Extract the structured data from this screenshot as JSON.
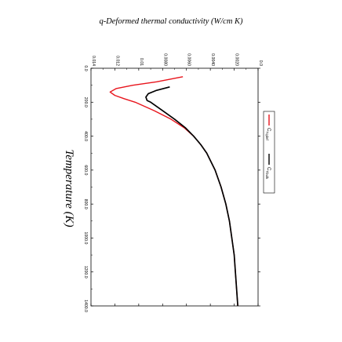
{
  "chart_data": {
    "type": "line",
    "title": "q-Deformed thermal conductivity (W/cm K)",
    "xlabel": "Temperature (K)",
    "ylabel": "",
    "xlim": [
      0,
      1400
    ],
    "ylim": [
      0,
      0.014
    ],
    "x_ticks": [
      "0.0",
      "200.0",
      "400.0",
      "600.0",
      "800.0",
      "1000.0",
      "1200.0",
      "1400.0"
    ],
    "y_ticks": [
      "0.0",
      "0.0020",
      "0.0040",
      "0.0060",
      "0.0080",
      "0.01",
      "0.012",
      "0.014"
    ],
    "legend_position": "right",
    "series": [
      {
        "name_main": "C",
        "name_sub": "Tqdef",
        "color": "#e8141c",
        "x": [
          50,
          80,
          100,
          120,
          140,
          160,
          180,
          200,
          250,
          300,
          350,
          400,
          450,
          500,
          600,
          700,
          800,
          900,
          1000,
          1100,
          1200,
          1300,
          1400
        ],
        "y": [
          0.0063,
          0.0085,
          0.0105,
          0.0119,
          0.0124,
          0.012,
          0.0112,
          0.0103,
          0.0087,
          0.0073,
          0.0062,
          0.0054,
          0.0048,
          0.0043,
          0.0036,
          0.0031,
          0.0027,
          0.0024,
          0.0022,
          0.002,
          0.0019,
          0.0018,
          0.0017
        ]
      },
      {
        "name_main": "C",
        "name_sub": "Tbulk",
        "color": "#000000",
        "x": [
          110,
          130,
          150,
          170,
          190,
          200,
          250,
          300,
          350,
          400,
          450,
          500,
          600,
          700,
          800,
          900,
          1000,
          1100,
          1200,
          1300,
          1400
        ],
        "y": [
          0.0074,
          0.0085,
          0.0092,
          0.0094,
          0.0093,
          0.009,
          0.008,
          0.007,
          0.0061,
          0.0054,
          0.0048,
          0.0043,
          0.0036,
          0.0031,
          0.0027,
          0.0024,
          0.0022,
          0.002,
          0.0019,
          0.0018,
          0.0017
        ]
      }
    ]
  }
}
